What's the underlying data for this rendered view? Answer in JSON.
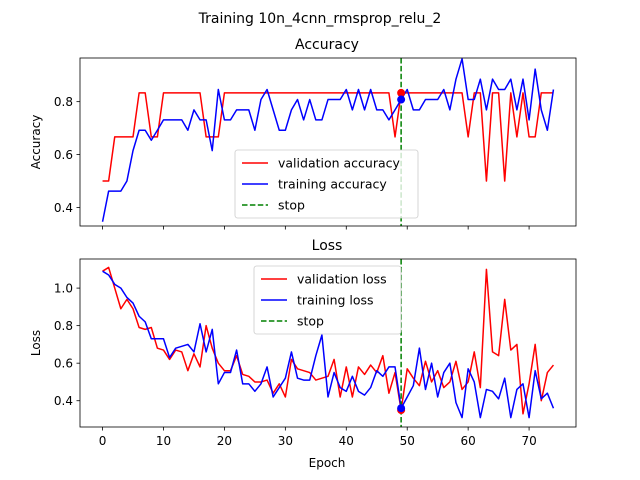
{
  "figure": {
    "suptitle": "Training 10n_4cnn_rmsprop_relu_2"
  },
  "chart_data": [
    {
      "type": "line",
      "title": "Accuracy",
      "xlabel": "",
      "ylabel": "Accuracy",
      "xlim": [
        -3.7,
        77.7
      ],
      "ylim": [
        0.33,
        0.965
      ],
      "xticks": [
        0,
        10,
        20,
        30,
        40,
        50,
        60,
        70
      ],
      "show_xtick_labels": false,
      "yticks": [
        0.4,
        0.6,
        0.8
      ],
      "ytick_labels": [
        "0.4",
        "0.6",
        "0.8"
      ],
      "legend_position": "lower-center",
      "series": [
        {
          "name": "validation accuracy",
          "color": "#ff0000",
          "style": "solid",
          "x": [
            0,
            1,
            2,
            3,
            4,
            5,
            6,
            7,
            8,
            9,
            10,
            11,
            12,
            13,
            14,
            15,
            16,
            17,
            18,
            19,
            20,
            21,
            22,
            23,
            24,
            25,
            26,
            27,
            28,
            29,
            30,
            31,
            32,
            33,
            34,
            35,
            36,
            37,
            38,
            39,
            40,
            41,
            42,
            43,
            44,
            45,
            46,
            47,
            48,
            49,
            50,
            51,
            52,
            53,
            54,
            55,
            56,
            57,
            58,
            59,
            60,
            61,
            62,
            63,
            64,
            65,
            66,
            67,
            68,
            69,
            70,
            71,
            72,
            73,
            74
          ],
          "values": [
            0.5,
            0.5,
            0.667,
            0.667,
            0.667,
            0.667,
            0.833,
            0.833,
            0.667,
            0.667,
            0.833,
            0.833,
            0.833,
            0.833,
            0.833,
            0.833,
            0.833,
            0.667,
            0.667,
            0.667,
            0.833,
            0.833,
            0.833,
            0.833,
            0.833,
            0.833,
            0.833,
            0.833,
            0.833,
            0.833,
            0.833,
            0.833,
            0.833,
            0.833,
            0.833,
            0.833,
            0.833,
            0.833,
            0.833,
            0.833,
            0.833,
            0.833,
            0.833,
            0.833,
            0.833,
            0.833,
            0.833,
            0.833,
            0.667,
            0.833,
            0.833,
            0.833,
            0.833,
            0.833,
            0.833,
            0.833,
            0.833,
            0.833,
            0.833,
            0.833,
            0.667,
            0.833,
            0.833,
            0.5,
            0.833,
            0.833,
            0.5,
            0.833,
            0.667,
            0.833,
            0.667,
            0.667,
            0.833,
            0.833,
            0.833
          ]
        },
        {
          "name": "training accuracy",
          "color": "#0000ff",
          "style": "solid",
          "x": [
            0,
            1,
            2,
            3,
            4,
            5,
            6,
            7,
            8,
            9,
            10,
            11,
            12,
            13,
            14,
            15,
            16,
            17,
            18,
            19,
            20,
            21,
            22,
            23,
            24,
            25,
            26,
            27,
            28,
            29,
            30,
            31,
            32,
            33,
            34,
            35,
            36,
            37,
            38,
            39,
            40,
            41,
            42,
            43,
            44,
            45,
            46,
            47,
            48,
            49,
            50,
            51,
            52,
            53,
            54,
            55,
            56,
            57,
            58,
            59,
            60,
            61,
            62,
            63,
            64,
            65,
            66,
            67,
            68,
            69,
            70,
            71,
            72,
            73,
            74
          ],
          "values": [
            0.346,
            0.462,
            0.462,
            0.462,
            0.5,
            0.615,
            0.692,
            0.692,
            0.654,
            0.692,
            0.731,
            0.731,
            0.731,
            0.731,
            0.692,
            0.769,
            0.731,
            0.731,
            0.615,
            0.846,
            0.731,
            0.731,
            0.769,
            0.769,
            0.769,
            0.692,
            0.808,
            0.846,
            0.769,
            0.692,
            0.692,
            0.769,
            0.808,
            0.731,
            0.808,
            0.731,
            0.731,
            0.808,
            0.808,
            0.808,
            0.846,
            0.769,
            0.846,
            0.769,
            0.846,
            0.769,
            0.769,
            0.731,
            0.769,
            0.808,
            0.846,
            0.769,
            0.769,
            0.808,
            0.808,
            0.808,
            0.846,
            0.769,
            0.885,
            0.962,
            0.808,
            0.808,
            0.885,
            0.769,
            0.885,
            0.846,
            0.846,
            0.885,
            0.769,
            0.885,
            0.731,
            0.923,
            0.769,
            0.692,
            0.846
          ]
        },
        {
          "name": "stop",
          "color": "#008000",
          "style": "dashed",
          "vline_x": 49
        }
      ],
      "markers": [
        {
          "x": 49,
          "y": 0.833,
          "color": "#ff0000"
        },
        {
          "x": 49,
          "y": 0.808,
          "color": "#0000ff"
        }
      ]
    },
    {
      "type": "line",
      "title": "Loss",
      "xlabel": "Epoch",
      "ylabel": "Loss",
      "xlim": [
        -3.7,
        77.7
      ],
      "ylim": [
        0.26,
        1.155
      ],
      "xticks": [
        0,
        10,
        20,
        30,
        40,
        50,
        60,
        70
      ],
      "xtick_labels": [
        "0",
        "10",
        "20",
        "30",
        "40",
        "50",
        "60",
        "70"
      ],
      "show_xtick_labels": true,
      "yticks": [
        0.4,
        0.6,
        0.8,
        1.0
      ],
      "ytick_labels": [
        "0.4",
        "0.6",
        "0.8",
        "1.0"
      ],
      "legend_position": "upper-center",
      "series": [
        {
          "name": "validation loss",
          "color": "#ff0000",
          "style": "solid",
          "x": [
            0,
            1,
            2,
            3,
            4,
            5,
            6,
            7,
            8,
            9,
            10,
            11,
            12,
            13,
            14,
            15,
            16,
            17,
            18,
            19,
            20,
            21,
            22,
            23,
            24,
            25,
            26,
            27,
            28,
            29,
            30,
            31,
            32,
            33,
            34,
            35,
            36,
            37,
            38,
            39,
            40,
            41,
            42,
            43,
            44,
            45,
            46,
            47,
            48,
            49,
            50,
            51,
            52,
            53,
            54,
            55,
            56,
            57,
            58,
            59,
            60,
            61,
            62,
            63,
            64,
            65,
            66,
            67,
            68,
            69,
            70,
            71,
            72,
            73,
            74
          ],
          "values": [
            1.09,
            1.11,
            1.0,
            0.89,
            0.94,
            0.89,
            0.79,
            0.78,
            0.79,
            0.68,
            0.67,
            0.62,
            0.67,
            0.66,
            0.56,
            0.65,
            0.58,
            0.8,
            0.68,
            0.6,
            0.56,
            0.56,
            0.64,
            0.54,
            0.53,
            0.5,
            0.5,
            0.51,
            0.44,
            0.49,
            0.42,
            0.62,
            0.57,
            0.56,
            0.55,
            0.51,
            0.52,
            0.53,
            0.62,
            0.42,
            0.58,
            0.42,
            0.58,
            0.54,
            0.59,
            0.55,
            0.64,
            0.44,
            0.55,
            0.35,
            0.57,
            0.52,
            0.48,
            0.61,
            0.5,
            0.56,
            0.47,
            0.5,
            0.61,
            0.46,
            0.5,
            0.66,
            0.47,
            1.1,
            0.66,
            0.64,
            0.94,
            0.67,
            0.7,
            0.33,
            0.49,
            0.7,
            0.4,
            0.55,
            0.59
          ]
        },
        {
          "name": "training loss",
          "color": "#0000ff",
          "style": "solid",
          "x": [
            0,
            1,
            2,
            3,
            4,
            5,
            6,
            7,
            8,
            9,
            10,
            11,
            12,
            13,
            14,
            15,
            16,
            17,
            18,
            19,
            20,
            21,
            22,
            23,
            24,
            25,
            26,
            27,
            28,
            29,
            30,
            31,
            32,
            33,
            34,
            35,
            36,
            37,
            38,
            39,
            40,
            41,
            42,
            43,
            44,
            45,
            46,
            47,
            48,
            49,
            50,
            51,
            52,
            53,
            54,
            55,
            56,
            57,
            58,
            59,
            60,
            61,
            62,
            63,
            64,
            65,
            66,
            67,
            68,
            69,
            70,
            71,
            72,
            73,
            74
          ],
          "values": [
            1.09,
            1.07,
            1.02,
            1.0,
            0.95,
            0.92,
            0.85,
            0.82,
            0.73,
            0.73,
            0.73,
            0.63,
            0.68,
            0.69,
            0.7,
            0.66,
            0.81,
            0.66,
            0.78,
            0.49,
            0.55,
            0.55,
            0.67,
            0.49,
            0.49,
            0.45,
            0.49,
            0.58,
            0.42,
            0.47,
            0.52,
            0.66,
            0.52,
            0.51,
            0.51,
            0.64,
            0.75,
            0.42,
            0.55,
            0.47,
            0.45,
            0.53,
            0.45,
            0.43,
            0.47,
            0.56,
            0.53,
            0.58,
            0.58,
            0.36,
            0.42,
            0.48,
            0.68,
            0.46,
            0.6,
            0.42,
            0.55,
            0.6,
            0.39,
            0.31,
            0.57,
            0.5,
            0.31,
            0.46,
            0.45,
            0.41,
            0.52,
            0.31,
            0.46,
            0.49,
            0.31,
            0.56,
            0.41,
            0.44,
            0.36
          ]
        },
        {
          "name": "stop",
          "color": "#008000",
          "style": "dashed",
          "vline_x": 49
        }
      ],
      "markers": [
        {
          "x": 49,
          "y": 0.35,
          "color": "#ff0000"
        },
        {
          "x": 49,
          "y": 0.36,
          "color": "#0000ff"
        }
      ]
    }
  ]
}
